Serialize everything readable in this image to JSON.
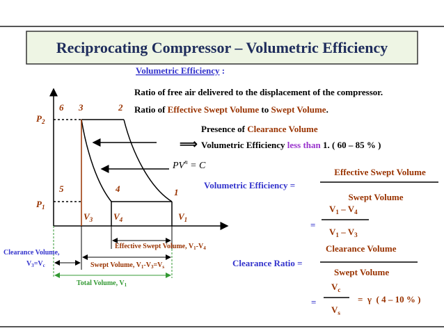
{
  "title": "Reciprocating Compressor – Volumetric Efficiency",
  "definition": {
    "heading": "Volumetric Efficiency",
    "colon": " :",
    "line1": "Ratio of free air delivered to the displacement of the compressor.",
    "line2": [
      "Ratio of ",
      "Effective Swept Volume",
      " to ",
      "Swept Volume",
      "."
    ]
  },
  "clearance_note": {
    "line1": [
      "Presence of ",
      "Clearance Volume"
    ],
    "arrow": "⟹",
    "line2": [
      "Volumetric Efficiency ",
      "less than",
      " 1. ( 60 – 85 % )"
    ]
  },
  "process_law": [
    "PV",
    "n",
    " = C"
  ],
  "volumetric_efficiency_formula": {
    "lhs": "Volumetric Efficiency =",
    "numerator": "Effective Swept Volume",
    "denominator": "Swept Volume",
    "equals": "=",
    "numerator2": [
      "V",
      "1",
      " – V",
      "4"
    ],
    "denominator2": [
      "V",
      "1",
      " – V",
      "3"
    ]
  },
  "clearance_ratio_formula": {
    "lhs": "Clearance Ratio =",
    "numerator": "Clearance Volume",
    "denominator": "Swept Volume",
    "equals": "=",
    "numerator2": [
      "V",
      "c"
    ],
    "denominator2": [
      "V",
      "s"
    ],
    "result": "=  γ  ( 4 – 10 % )"
  },
  "diagram": {
    "points": [
      "1",
      "2",
      "3",
      "4",
      "5",
      "6"
    ],
    "pressures": [
      [
        "P",
        "2"
      ],
      [
        "P",
        "1"
      ]
    ],
    "volumes": [
      [
        "V",
        "3"
      ],
      [
        "V",
        "4"
      ],
      [
        "V",
        "1"
      ]
    ],
    "dimensions": {
      "clearance": {
        "line1": "Clearance Volume,",
        "line2": [
          "V",
          "3",
          "=V",
          "c"
        ]
      },
      "effective_swept": [
        "Effective Swept Volume, V",
        "1",
        "-V",
        "4"
      ],
      "swept": [
        "Swept Volume, V",
        "1",
        "-V",
        "3",
        "=V",
        "s"
      ],
      "total": [
        "Total Volume, V",
        "1"
      ]
    }
  }
}
